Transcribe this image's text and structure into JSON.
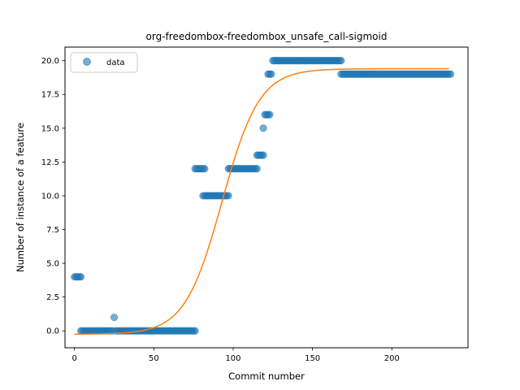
{
  "chart_data": {
    "type": "scatter",
    "title": "org-freedombox-freedombox_unsafe_call-sigmoid",
    "xlabel": "Commit number",
    "ylabel": "Number of instance of a feature",
    "xlim": [
      -6,
      248
    ],
    "ylim": [
      -1.25,
      21.0
    ],
    "xticks": [
      0,
      50,
      100,
      150,
      200
    ],
    "yticks": [
      0.0,
      2.5,
      5.0,
      7.5,
      10.0,
      12.5,
      15.0,
      17.5,
      20.0
    ],
    "ytick_labels": [
      "0.0",
      "2.5",
      "5.0",
      "7.5",
      "10.0",
      "12.5",
      "15.0",
      "17.5",
      "20.0"
    ],
    "grid": false,
    "legend": {
      "position": "upper-left",
      "entries": [
        "data"
      ]
    },
    "colors": {
      "data": "#1f77b4",
      "fit": "#ff7f0e"
    },
    "series": [
      {
        "name": "data",
        "kind": "scatter",
        "segments": [
          {
            "x_start": 0,
            "x_end": 4,
            "y": 4
          },
          {
            "x_start": 4,
            "x_end": 24,
            "y": 0
          },
          {
            "x_start": 25,
            "x_end": 25,
            "y": 1
          },
          {
            "x_start": 26,
            "x_end": 76,
            "y": 0
          },
          {
            "x_start": 76,
            "x_end": 82,
            "y": 12
          },
          {
            "x_start": 81,
            "x_end": 97,
            "y": 10
          },
          {
            "x_start": 97,
            "x_end": 115,
            "y": 12
          },
          {
            "x_start": 115,
            "x_end": 119,
            "y": 13
          },
          {
            "x_start": 119,
            "x_end": 119,
            "y": 15
          },
          {
            "x_start": 120,
            "x_end": 123,
            "y": 16
          },
          {
            "x_start": 122,
            "x_end": 124,
            "y": 19
          },
          {
            "x_start": 125,
            "x_end": 168,
            "y": 20
          },
          {
            "x_start": 168,
            "x_end": 237,
            "y": 19
          }
        ]
      },
      {
        "kind": "line",
        "model": "sigmoid",
        "params": {
          "L": 19.65,
          "x0": 93,
          "k": 0.085,
          "b": -0.25
        },
        "x_range": [
          0,
          236
        ]
      }
    ]
  }
}
